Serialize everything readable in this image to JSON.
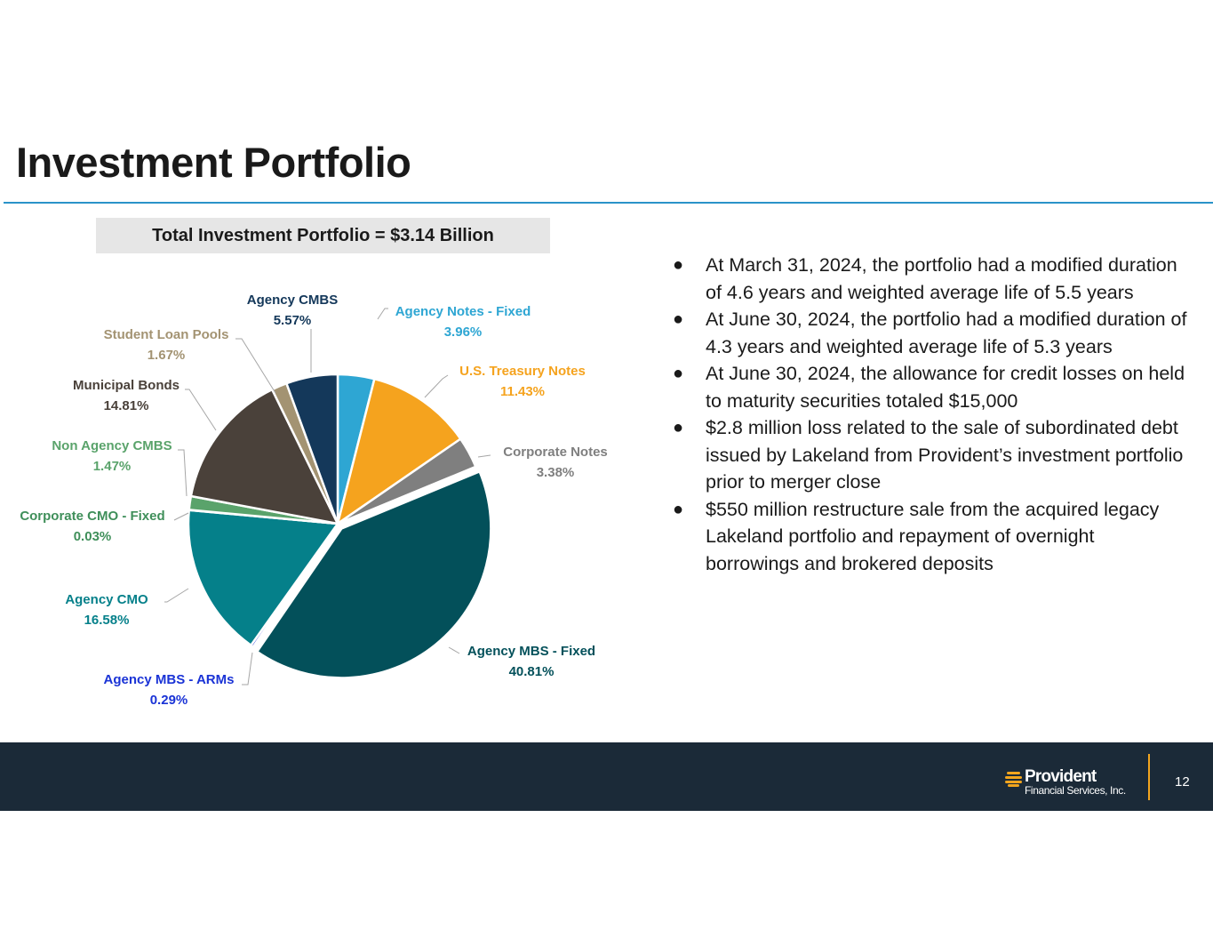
{
  "title": "Investment Portfolio",
  "total_label": "Total Investment Portfolio = $3.14 Billion",
  "chart_data": {
    "type": "pie",
    "title": "Total Investment Portfolio = $3.14 Billion",
    "slices": [
      {
        "label": "Agency Notes - Fixed",
        "value": 3.96,
        "pct": "3.96%",
        "color": "#2ea6d3",
        "label_color": "#2ea6d3"
      },
      {
        "label": "U.S. Treasury Notes",
        "value": 11.43,
        "pct": "11.43%",
        "color": "#f5a31e",
        "label_color": "#f5a31e"
      },
      {
        "label": "Corporate Notes",
        "value": 3.38,
        "pct": "3.38%",
        "color": "#7f7f7f",
        "label_color": "#7f7f7f"
      },
      {
        "label": "Agency MBS - Fixed",
        "value": 40.81,
        "pct": "40.81%",
        "color": "#03505a",
        "label_color": "#03505a"
      },
      {
        "label": "Agency MBS - ARMs",
        "value": 0.29,
        "pct": "0.29%",
        "color": "#1a33d6",
        "label_color": "#1a33d6"
      },
      {
        "label": "Agency CMO",
        "value": 16.58,
        "pct": "16.58%",
        "color": "#05808a",
        "label_color": "#05808a"
      },
      {
        "label": "Corporate CMO - Fixed",
        "value": 0.03,
        "pct": "0.03%",
        "color": "#3f8f5a",
        "label_color": "#3f8f5a"
      },
      {
        "label": "Non Agency CMBS",
        "value": 1.47,
        "pct": "1.47%",
        "color": "#5aa36b",
        "label_color": "#5aa36b"
      },
      {
        "label": "Municipal Bonds",
        "value": 14.81,
        "pct": "14.81%",
        "color": "#4a413a",
        "label_color": "#4a413a"
      },
      {
        "label": "Student Loan Pools",
        "value": 1.67,
        "pct": "1.67%",
        "color": "#a39372",
        "label_color": "#a39372"
      },
      {
        "label": "Agency CMBS",
        "value": 5.57,
        "pct": "5.57%",
        "color": "#14385a",
        "label_color": "#14385a"
      }
    ]
  },
  "bullets": [
    "At March 31, 2024, the portfolio had a modified duration of 4.6 years and weighted average life of 5.5 years",
    "At June 30, 2024, the portfolio had a modified duration of 4.3 years and weighted average life of 5.3 years",
    "At June 30, 2024, the allowance for credit losses on held to maturity securities totaled $15,000",
    "$2.8 million loss related to the sale of subordinated debt issued by Lakeland from Provident’s investment portfolio prior to merger close",
    "$550 million restructure sale from the acquired legacy Lakeland portfolio and repayment of overnight borrowings and brokered deposits"
  ],
  "footer": {
    "logo_name": "Provident",
    "logo_sub": "Financial Services, Inc.",
    "page_number": "12",
    "accent_color": "#f2a51e"
  }
}
